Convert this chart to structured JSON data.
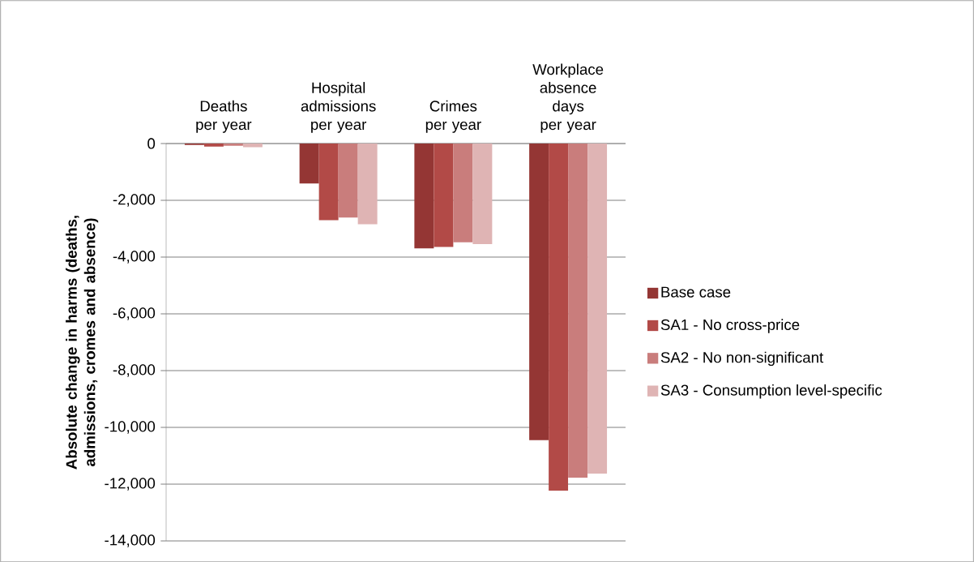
{
  "chart_data": {
    "type": "bar",
    "categories": [
      "Deaths per year",
      "Hospital admissions per year",
      "Crimes per year",
      "Workplace absence days per year"
    ],
    "ylabel": "Absolute change in harms (deaths, admissions, cromes and absence)",
    "series": [
      {
        "name": "Base case",
        "color": "#943634",
        "values": [
          -50,
          -1410,
          -3690,
          -10450
        ]
      },
      {
        "name": "SA1 - No cross-price",
        "color": "#b24a47",
        "values": [
          -110,
          -2700,
          -3640,
          -12230
        ]
      },
      {
        "name": "SA2 - No non-significant",
        "color": "#c97d7c",
        "values": [
          -80,
          -2610,
          -3480,
          -11770
        ]
      },
      {
        "name": "SA3 - Consumption level-specific",
        "color": "#dfb4b4",
        "values": [
          -130,
          -2840,
          -3540,
          -11630
        ]
      }
    ],
    "ylim": [
      -14000,
      0
    ],
    "yticks": [
      0,
      {
        "value": -2000,
        "label": "-2,000"
      },
      {
        "value": -4000,
        "label": "-4,000"
      },
      {
        "value": -6000,
        "label": "-6,000"
      },
      {
        "value": -8000,
        "label": "-8,000"
      },
      {
        "value": -10000,
        "label": "-10,000"
      },
      {
        "value": -12000,
        "label": "-12,000"
      },
      {
        "value": -14000,
        "label": "-14,000"
      }
    ],
    "grid": "y",
    "legend": "right"
  }
}
